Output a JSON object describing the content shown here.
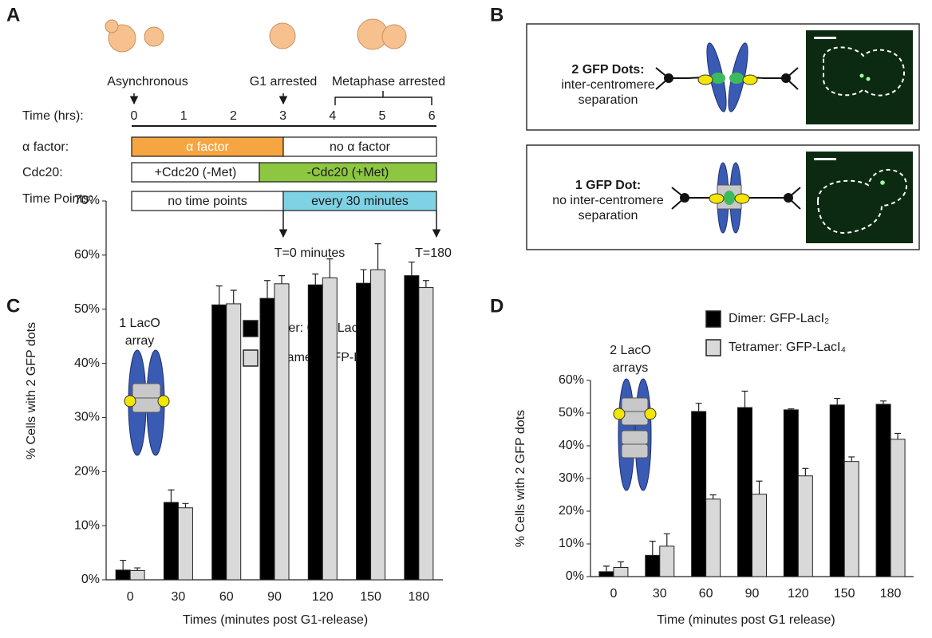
{
  "panel_a": {
    "label": "A",
    "stages": [
      "Asynchronous",
      "G1 arrested",
      "Metaphase arrested"
    ],
    "time_title": "Time (hrs):",
    "time_labels": [
      0,
      1,
      2,
      3,
      4,
      5,
      6
    ],
    "rows": [
      {
        "label": "α factor:",
        "segments": [
          "α factor",
          "no α factor"
        ]
      },
      {
        "label": "Cdc20:",
        "segments": [
          "+Cdc20 (-Met)",
          "-Cdc20 (+Met)"
        ]
      },
      {
        "label": "Time Points:",
        "segments": [
          "no time points",
          "every 30 minutes"
        ]
      }
    ],
    "markers": [
      "T=0 minutes",
      "T=180"
    ]
  },
  "panel_b": {
    "label": "B",
    "boxes": [
      {
        "title": "2 GFP Dots:",
        "lines": [
          "inter-centromere",
          "separation"
        ]
      },
      {
        "title": "1 GFP Dot:",
        "lines": [
          "no inter-centromere",
          "separation"
        ]
      }
    ]
  },
  "chart_data": [
    {
      "type": "bar",
      "panel_label": "C",
      "annotation": [
        "1 LacO",
        "array"
      ],
      "x_label": "Times (minutes post G1-release)",
      "y_label": "% Cells with 2 GFP dots",
      "categories": [
        0,
        30,
        60,
        90,
        120,
        150,
        180
      ],
      "series": [
        {
          "name": "Dimer: GFP-LacI₂",
          "color": "#000000",
          "values": [
            1.8,
            14.3,
            50.8,
            52,
            54.5,
            54.8,
            56.2
          ],
          "errors": [
            1.8,
            2.3,
            3.5,
            3.3,
            2,
            2.5,
            2.5
          ]
        },
        {
          "name": "Tetramer: GFP-LacI₄",
          "color": "#d9d9d9",
          "values": [
            1.7,
            13.3,
            51,
            54.7,
            55.8,
            57.3,
            54
          ],
          "errors": [
            0.5,
            0.8,
            2.5,
            1.5,
            3.5,
            4.8,
            1.3
          ]
        }
      ],
      "ylim": [
        0,
        70
      ],
      "yticks": [
        {
          "value": 0,
          "label": "0%"
        },
        {
          "value": 10,
          "label": "10%"
        },
        {
          "value": 20,
          "label": "20%"
        },
        {
          "value": 30,
          "label": "30%"
        },
        {
          "value": 40,
          "label": "40%"
        },
        {
          "value": 50,
          "label": "50%"
        },
        {
          "value": 60,
          "label": "60%"
        },
        {
          "value": 70,
          "label": "70%"
        }
      ]
    },
    {
      "type": "bar",
      "panel_label": "D",
      "annotation": [
        "2 LacO",
        "arrays"
      ],
      "x_label": "Time (minutes post G1 release)",
      "y_label": "% Cells with 2 GFP dots",
      "categories": [
        0,
        30,
        60,
        90,
        120,
        150,
        180
      ],
      "series": [
        {
          "name": "Dimer: GFP-LacI₂",
          "color": "#000000",
          "values": [
            1.5,
            6.5,
            50.5,
            51.7,
            51,
            52.5,
            52.7
          ],
          "errors": [
            1.7,
            4.3,
            2.5,
            5,
            0.3,
            2,
            1
          ]
        },
        {
          "name": "Tetramer: GFP-LacI₄",
          "color": "#d9d9d9",
          "values": [
            2.8,
            9.3,
            23.7,
            25.2,
            30.8,
            35.2,
            42
          ],
          "errors": [
            1.7,
            3.8,
            1.3,
            4,
            2.3,
            1.4,
            1.8
          ]
        }
      ],
      "ylim": [
        0,
        60
      ],
      "yticks": [
        {
          "value": 0,
          "label": "0%"
        },
        {
          "value": 10,
          "label": "10%"
        },
        {
          "value": 20,
          "label": "20%"
        },
        {
          "value": 30,
          "label": "30%"
        },
        {
          "value": 40,
          "label": "40%"
        },
        {
          "value": 50,
          "label": "50%"
        },
        {
          "value": 60,
          "label": "60%"
        }
      ]
    }
  ]
}
